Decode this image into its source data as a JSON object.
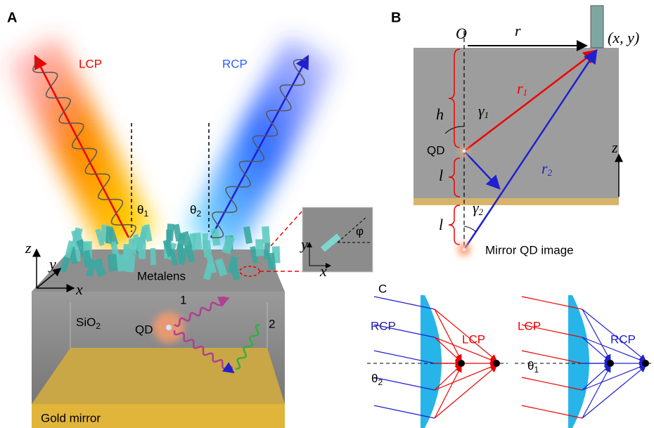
{
  "panel_a": {
    "label": "A",
    "beams": [
      {
        "label": "LCP",
        "angle": {
          "symbol": "θ",
          "subscript": "1"
        }
      },
      {
        "label": "RCP",
        "angle": {
          "symbol": "θ",
          "subscript": "2"
        }
      }
    ],
    "metalens": "Metalens",
    "substrate": {
      "symbol": "SiO",
      "subscript": "2"
    },
    "emitter": "QD",
    "paths": [
      "1",
      "2"
    ],
    "mirror": "Gold mirror",
    "axes": {
      "z": "z",
      "y": "y",
      "x": "x"
    },
    "inset": {
      "y": "y",
      "x": "x",
      "angle": "φ"
    }
  },
  "panel_b": {
    "label": "B",
    "origin": "O",
    "radius": "r",
    "point": "(x, y)",
    "r1": {
      "symbol": "r",
      "subscript": "1"
    },
    "height": "h",
    "gamma1": {
      "symbol": "γ",
      "subscript": "1"
    },
    "r2": {
      "symbol": "r",
      "subscript": "2"
    },
    "emitter": "QD",
    "distance_top": "l",
    "axis": "z",
    "gamma2": {
      "symbol": "γ",
      "subscript": "2"
    },
    "distance_bottom": "l",
    "image": "Mirror QD image"
  },
  "panel_c": {
    "label": "C",
    "left": {
      "incident": "RCP",
      "focused": "LCP",
      "angle": {
        "symbol": "θ",
        "subscript": "2"
      }
    },
    "right": {
      "incident": "LCP",
      "focused": "RCP",
      "angle": {
        "symbol": "θ",
        "subscript": "1"
      }
    }
  }
}
